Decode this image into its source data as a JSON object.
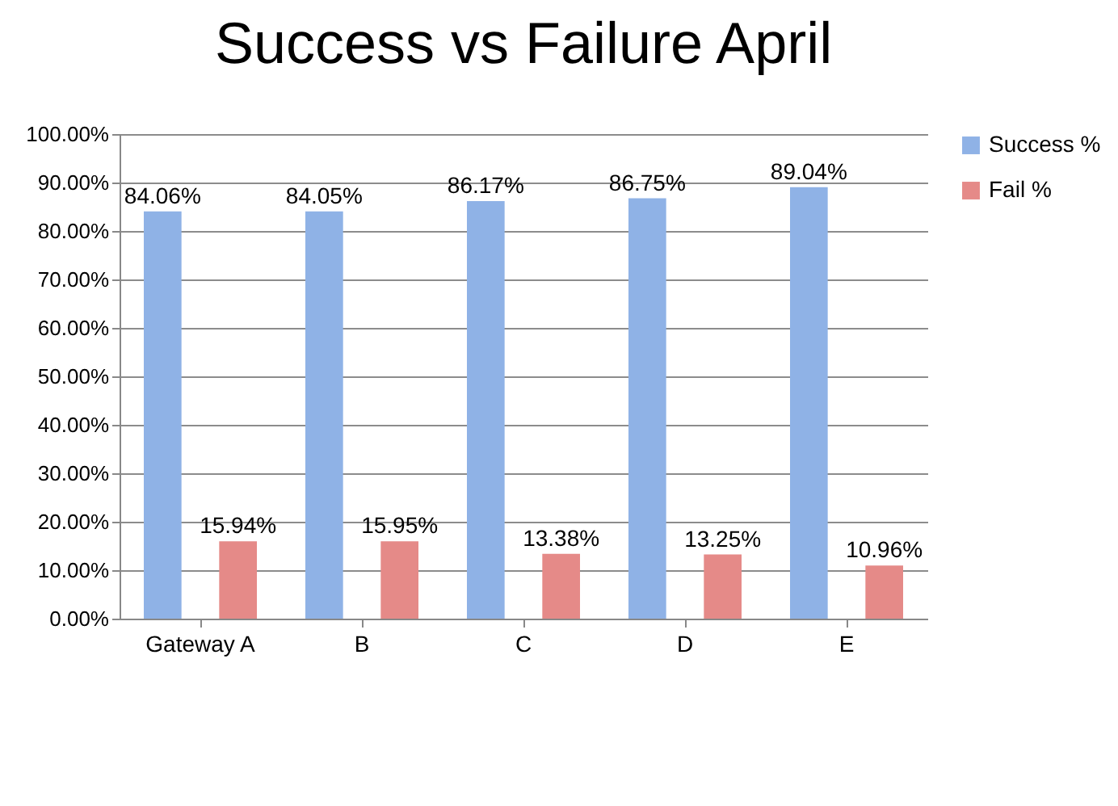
{
  "chart_data": {
    "type": "bar",
    "title": "Success vs Failure April",
    "categories": [
      "Gateway A",
      "B",
      "C",
      "D",
      "E"
    ],
    "series": [
      {
        "name": "Success %",
        "color": "#8fb2e6",
        "values": [
          84.06,
          84.05,
          86.17,
          86.75,
          89.04
        ],
        "value_labels": [
          "84.06%",
          "84.05%",
          "86.17%",
          "86.75%",
          "89.04%"
        ]
      },
      {
        "name": "Fail %",
        "color": "#e58a88",
        "values": [
          15.94,
          15.95,
          13.38,
          13.25,
          10.96
        ],
        "value_labels": [
          "15.94%",
          "15.95%",
          "13.38%",
          "13.25%",
          "10.96%"
        ]
      }
    ],
    "ylim": [
      0,
      100
    ],
    "yticks": [
      {
        "value": 0,
        "label": "0.00%"
      },
      {
        "value": 10,
        "label": "10.00%"
      },
      {
        "value": 20,
        "label": "20.00%"
      },
      {
        "value": 30,
        "label": "30.00%"
      },
      {
        "value": 40,
        "label": "40.00%"
      },
      {
        "value": 50,
        "label": "50.00%"
      },
      {
        "value": 60,
        "label": "60.00%"
      },
      {
        "value": 70,
        "label": "70.00%"
      },
      {
        "value": 80,
        "label": "80.00%"
      },
      {
        "value": 90,
        "label": "90.00%"
      },
      {
        "value": 100,
        "label": "100.00%"
      }
    ],
    "grid": "y",
    "legend": "right"
  }
}
